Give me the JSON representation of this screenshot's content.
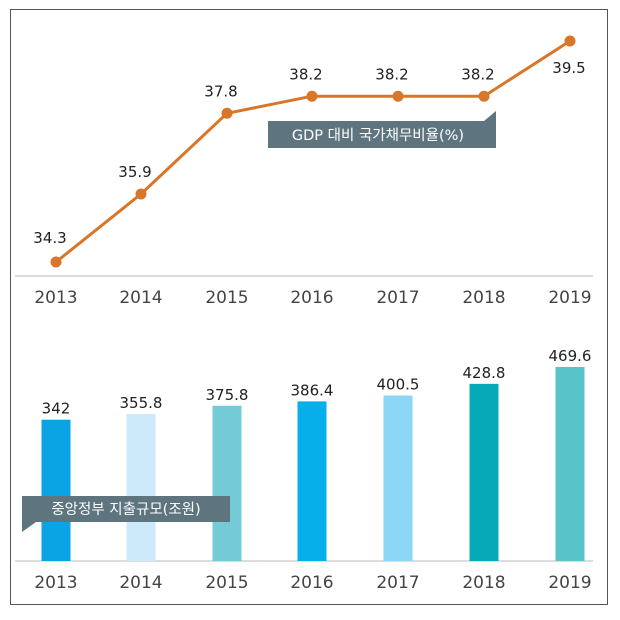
{
  "chart_data": [
    {
      "type": "line",
      "label": "GDP 대비 국가채무비율(%)",
      "categories": [
        "2013",
        "2014",
        "2015",
        "2016",
        "2017",
        "2018",
        "2019"
      ],
      "values": [
        34.3,
        35.9,
        37.8,
        38.2,
        38.2,
        38.2,
        39.5
      ],
      "value_labels": [
        "34.3",
        "35.9",
        "37.8",
        "38.2",
        "38.2",
        "38.2",
        "39.5"
      ],
      "color": "#D9762A",
      "label_color": "#5E7580"
    },
    {
      "type": "bar",
      "label": "중앙정부 지출규모(조원)",
      "categories": [
        "2013",
        "2014",
        "2015",
        "2016",
        "2017",
        "2018",
        "2019"
      ],
      "values": [
        342,
        355.8,
        375.8,
        386.4,
        400.5,
        428.8,
        469.6
      ],
      "value_labels": [
        "342",
        "355.8",
        "375.8",
        "386.4",
        "400.5",
        "428.8",
        "469.6"
      ],
      "colors": [
        "#0AA3E4",
        "#CCEAFA",
        "#74CAD6",
        "#06AEEA",
        "#8BD6F5",
        "#05A9B8",
        "#58C4C9"
      ],
      "label_color": "#5E7580"
    }
  ]
}
